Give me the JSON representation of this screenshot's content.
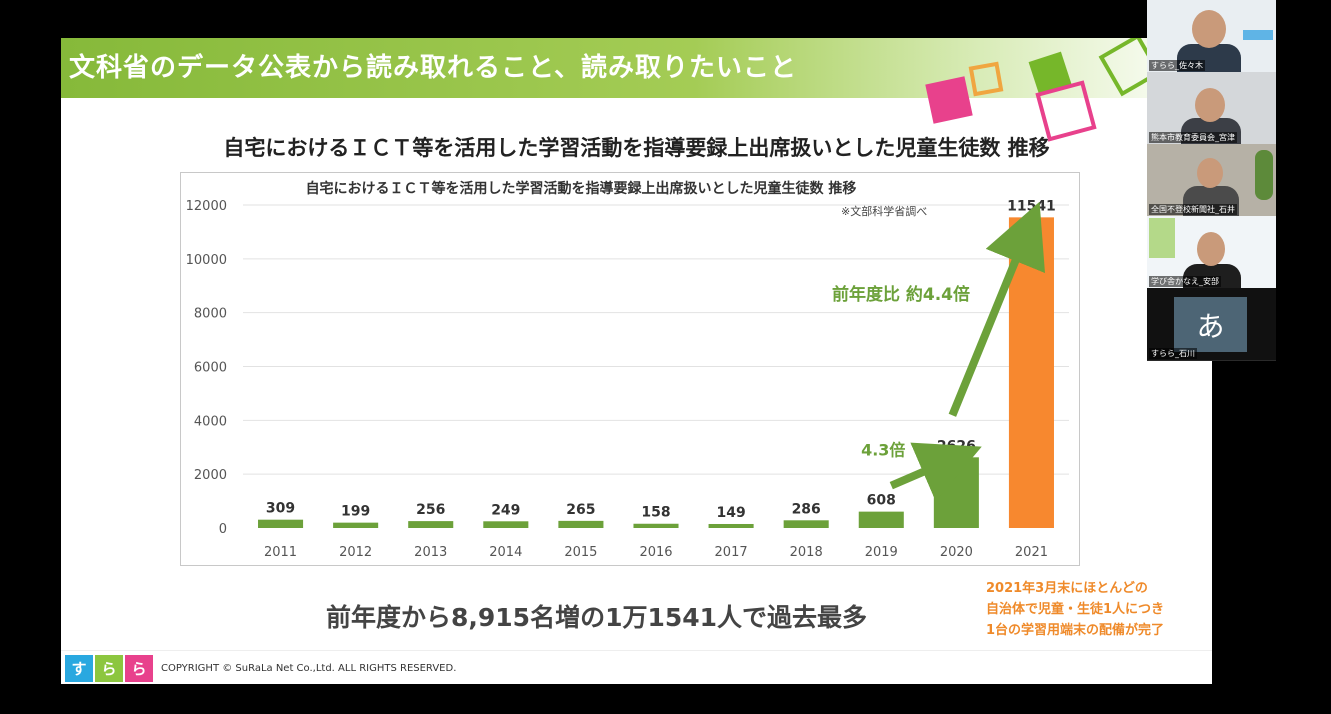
{
  "slide": {
    "header_title": "文科省のデータ公表から読み取れること、読み取りたいこと",
    "subtitle": "自宅におけるＩＣＴ等を活用した学習活動を指導要録上出席扱いとした児童生徒数 推移",
    "summary": "前年度から8,915名増の1万1541人で過去最多",
    "side_note": [
      "2021年3月末にほとんどの",
      "自治体で児童・生徒1人につき",
      "1台の学習用端末の配備が完了"
    ],
    "footer_logo": [
      "す",
      "ら",
      "ら"
    ],
    "copyright": "COPYRIGHT © SuRaLa Net Co.,Ltd. ALL RIGHTS RESERVED."
  },
  "chart_data": {
    "type": "bar",
    "title": "自宅におけるＩＣＴ等を活用した学習活動を指導要録上出席扱いとした児童生徒数 推移",
    "source_note": "※文部科学省調べ",
    "categories": [
      "2011",
      "2012",
      "2013",
      "2014",
      "2015",
      "2016",
      "2017",
      "2018",
      "2019",
      "2020",
      "2021"
    ],
    "values": [
      309,
      199,
      256,
      249,
      265,
      158,
      149,
      286,
      608,
      2626,
      11541
    ],
    "ylim": [
      0,
      12000
    ],
    "yticks": [
      0,
      2000,
      4000,
      6000,
      8000,
      10000,
      12000
    ],
    "grid": true,
    "colors": {
      "default": "#6ca13a",
      "highlight": "#f7882f",
      "annotation": "#6ca13a"
    },
    "highlight_index": 10,
    "annotations": [
      {
        "text": "4.3倍",
        "from_index": 8,
        "to_index": 9
      },
      {
        "text": "前年度比 約4.4倍",
        "from_index": 9,
        "to_index": 10
      }
    ]
  },
  "participants": [
    {
      "name": "すらら_佐々木",
      "type": "video"
    },
    {
      "name": "熊本市教育委員会_宮津",
      "type": "video"
    },
    {
      "name": "全国不登校新聞社_石井",
      "type": "video"
    },
    {
      "name": "学び舎かなえ_安部",
      "type": "video"
    },
    {
      "name": "すらら_石川",
      "type": "avatar",
      "avatar_text": "あ"
    }
  ]
}
